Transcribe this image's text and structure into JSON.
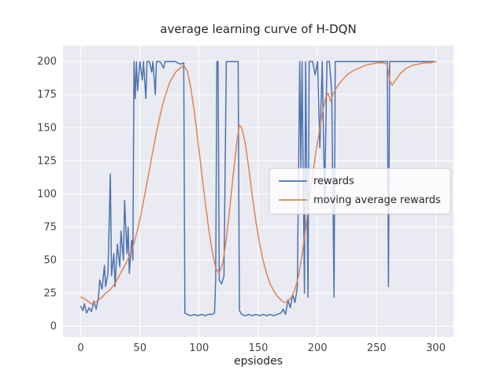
{
  "figure": {
    "kind": "matplotlib-seaborn-line-chart"
  },
  "chart_data": {
    "type": "line",
    "title": "average learning curve of H-DQN",
    "xlabel": "epsiodes",
    "ylabel": "",
    "xlim": [
      -15,
      315
    ],
    "ylim": [
      -8,
      212
    ],
    "xticks": [
      0,
      50,
      100,
      150,
      200,
      250,
      300
    ],
    "yticks": [
      0,
      25,
      50,
      75,
      100,
      125,
      150,
      175,
      200
    ],
    "grid": true,
    "plot_bg_color": "#eaeaf2",
    "grid_color": "#ffffff",
    "legend": {
      "position": "center right",
      "face_color": "rgba(255,255,255,0.8)",
      "edge_color": "#cccccc"
    },
    "series": [
      {
        "name": "rewards",
        "color": "#4C72B0",
        "points": [
          [
            0,
            15
          ],
          [
            2,
            12
          ],
          [
            3,
            17
          ],
          [
            5,
            10
          ],
          [
            7,
            14
          ],
          [
            9,
            11
          ],
          [
            11,
            19
          ],
          [
            13,
            13
          ],
          [
            15,
            22
          ],
          [
            16,
            35
          ],
          [
            18,
            28
          ],
          [
            20,
            46
          ],
          [
            21,
            30
          ],
          [
            23,
            40
          ],
          [
            25,
            115
          ],
          [
            26,
            38
          ],
          [
            28,
            55
          ],
          [
            29,
            30
          ],
          [
            31,
            62
          ],
          [
            33,
            45
          ],
          [
            34,
            72
          ],
          [
            36,
            50
          ],
          [
            37,
            95
          ],
          [
            39,
            55
          ],
          [
            40,
            75
          ],
          [
            41,
            40
          ],
          [
            43,
            65
          ],
          [
            44,
            50
          ],
          [
            45,
            200
          ],
          [
            46,
            172
          ],
          [
            47,
            200
          ],
          [
            48,
            178
          ],
          [
            50,
            200
          ],
          [
            52,
            186
          ],
          [
            53,
            200
          ],
          [
            55,
            172
          ],
          [
            56,
            200
          ],
          [
            58,
            200
          ],
          [
            60,
            192
          ],
          [
            61,
            200
          ],
          [
            63,
            175
          ],
          [
            64,
            200
          ],
          [
            67,
            200
          ],
          [
            70,
            195
          ],
          [
            71,
            200
          ],
          [
            75,
            200
          ],
          [
            80,
            200
          ],
          [
            84,
            198
          ],
          [
            87,
            199
          ],
          [
            88,
            10
          ],
          [
            90,
            9
          ],
          [
            93,
            8
          ],
          [
            96,
            9
          ],
          [
            99,
            8
          ],
          [
            102,
            9
          ],
          [
            105,
            8
          ],
          [
            108,
            9
          ],
          [
            111,
            9
          ],
          [
            113,
            10
          ],
          [
            114,
            35
          ],
          [
            115,
            200
          ],
          [
            116,
            200
          ],
          [
            117,
            35
          ],
          [
            119,
            32
          ],
          [
            121,
            38
          ],
          [
            123,
            200
          ],
          [
            126,
            200
          ],
          [
            130,
            200
          ],
          [
            133,
            200
          ],
          [
            134,
            12
          ],
          [
            136,
            9
          ],
          [
            139,
            8
          ],
          [
            142,
            9
          ],
          [
            145,
            8
          ],
          [
            148,
            9
          ],
          [
            151,
            8
          ],
          [
            154,
            9
          ],
          [
            157,
            8
          ],
          [
            160,
            9
          ],
          [
            163,
            8
          ],
          [
            166,
            9
          ],
          [
            169,
            10
          ],
          [
            171,
            13
          ],
          [
            173,
            9
          ],
          [
            175,
            20
          ],
          [
            177,
            14
          ],
          [
            179,
            24
          ],
          [
            181,
            18
          ],
          [
            183,
            30
          ],
          [
            185,
            200
          ],
          [
            186,
            120
          ],
          [
            187,
            200
          ],
          [
            189,
            25
          ],
          [
            190,
            200
          ],
          [
            192,
            22
          ],
          [
            193,
            200
          ],
          [
            196,
            200
          ],
          [
            198,
            190
          ],
          [
            200,
            200
          ],
          [
            202,
            135
          ],
          [
            204,
            200
          ],
          [
            206,
            95
          ],
          [
            208,
            200
          ],
          [
            210,
            200
          ],
          [
            212,
            178
          ],
          [
            214,
            22
          ],
          [
            215,
            200
          ],
          [
            218,
            200
          ],
          [
            222,
            200
          ],
          [
            228,
            200
          ],
          [
            235,
            200
          ],
          [
            245,
            200
          ],
          [
            255,
            200
          ],
          [
            259,
            200
          ],
          [
            260,
            30
          ],
          [
            261,
            200
          ],
          [
            270,
            200
          ],
          [
            280,
            200
          ],
          [
            290,
            200
          ],
          [
            300,
            200
          ]
        ]
      },
      {
        "name": "moving average rewards",
        "color": "#DD8452",
        "points": [
          [
            0,
            22
          ],
          [
            3,
            21
          ],
          [
            6,
            19
          ],
          [
            9,
            17
          ],
          [
            12,
            18
          ],
          [
            15,
            20
          ],
          [
            18,
            22
          ],
          [
            21,
            25
          ],
          [
            24,
            27
          ],
          [
            27,
            30
          ],
          [
            30,
            34
          ],
          [
            33,
            39
          ],
          [
            36,
            44
          ],
          [
            39,
            49
          ],
          [
            42,
            55
          ],
          [
            45,
            63
          ],
          [
            48,
            73
          ],
          [
            51,
            85
          ],
          [
            54,
            99
          ],
          [
            57,
            113
          ],
          [
            60,
            128
          ],
          [
            63,
            142
          ],
          [
            66,
            155
          ],
          [
            69,
            167
          ],
          [
            72,
            176
          ],
          [
            75,
            184
          ],
          [
            78,
            189
          ],
          [
            81,
            193
          ],
          [
            84,
            195
          ],
          [
            87,
            197
          ],
          [
            90,
            193
          ],
          [
            93,
            180
          ],
          [
            96,
            162
          ],
          [
            99,
            140
          ],
          [
            102,
            117
          ],
          [
            105,
            95
          ],
          [
            108,
            74
          ],
          [
            111,
            57
          ],
          [
            114,
            44
          ],
          [
            117,
            40
          ],
          [
            120,
            48
          ],
          [
            123,
            66
          ],
          [
            126,
            90
          ],
          [
            129,
            116
          ],
          [
            132,
            140
          ],
          [
            134,
            152
          ],
          [
            136,
            150
          ],
          [
            139,
            138
          ],
          [
            142,
            119
          ],
          [
            145,
            98
          ],
          [
            148,
            79
          ],
          [
            151,
            63
          ],
          [
            154,
            50
          ],
          [
            157,
            40
          ],
          [
            160,
            32
          ],
          [
            163,
            27
          ],
          [
            166,
            23
          ],
          [
            169,
            20
          ],
          [
            172,
            18
          ],
          [
            175,
            19
          ],
          [
            178,
            22
          ],
          [
            181,
            28
          ],
          [
            184,
            38
          ],
          [
            187,
            54
          ],
          [
            190,
            74
          ],
          [
            193,
            95
          ],
          [
            196,
            115
          ],
          [
            199,
            133
          ],
          [
            202,
            150
          ],
          [
            205,
            165
          ],
          [
            207,
            173
          ],
          [
            209,
            176
          ],
          [
            211,
            170
          ],
          [
            213,
            175
          ],
          [
            216,
            180
          ],
          [
            219,
            184
          ],
          [
            222,
            187
          ],
          [
            225,
            190
          ],
          [
            230,
            193
          ],
          [
            235,
            195
          ],
          [
            240,
            197
          ],
          [
            245,
            198
          ],
          [
            250,
            199
          ],
          [
            255,
            199
          ],
          [
            259,
            198
          ],
          [
            261,
            186
          ],
          [
            263,
            182
          ],
          [
            266,
            186
          ],
          [
            270,
            191
          ],
          [
            275,
            195
          ],
          [
            280,
            197
          ],
          [
            285,
            198
          ],
          [
            290,
            199
          ],
          [
            295,
            199
          ],
          [
            300,
            200
          ]
        ]
      }
    ]
  }
}
